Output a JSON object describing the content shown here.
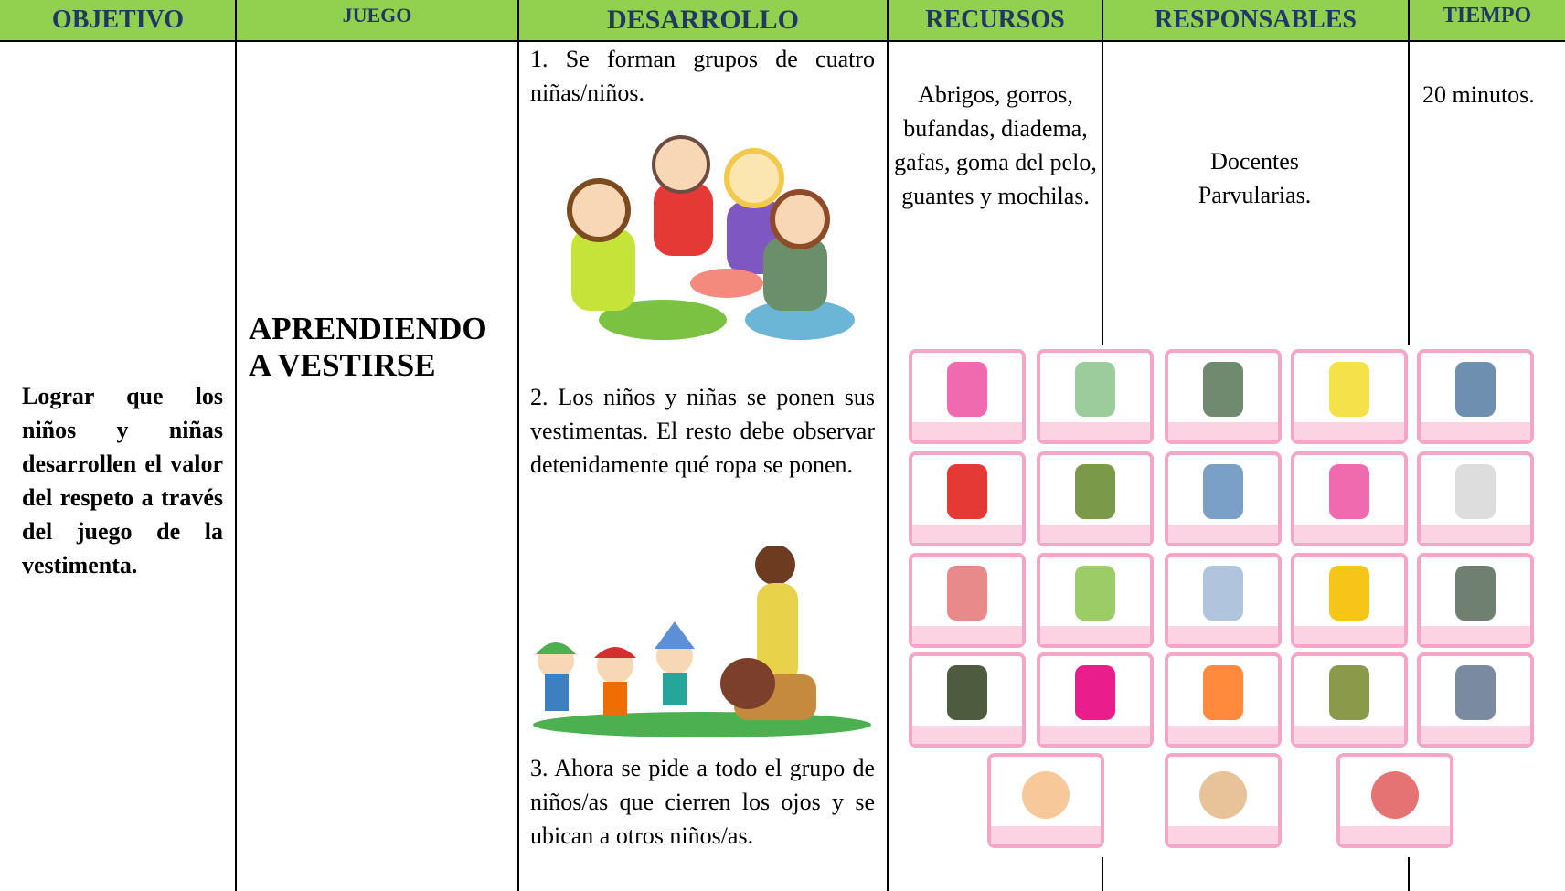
{
  "header": {
    "columns": [
      "OBJETIVO",
      "JUEGO",
      "DESARROLLO",
      "RECURSOS",
      "RESPONSABLES",
      "TIEMPO"
    ]
  },
  "row": {
    "objetivo": "Lograr que los niños y niñas desarrollen el valor del respeto a través del juego de la vestimenta.",
    "juego": "APRENDIENDO A VESTIRSE",
    "desarrollo": [
      "1. Se forman grupos de cuatro niñas/niños.",
      "2. Los niños y niñas se ponen sus vestimentas. El resto debe observar detenidamente qué ropa se ponen.",
      "3. Ahora se pide a todo el grupo de niños/as que cierren los ojos y se ubican a otros niños/as."
    ],
    "recursos": "Abrigos, gorros, bufandas, diadema, gafas, goma del pelo, guantes y mochilas.",
    "responsables": "Docentes Parvularias.",
    "tiempo": "20 minutos."
  }
}
